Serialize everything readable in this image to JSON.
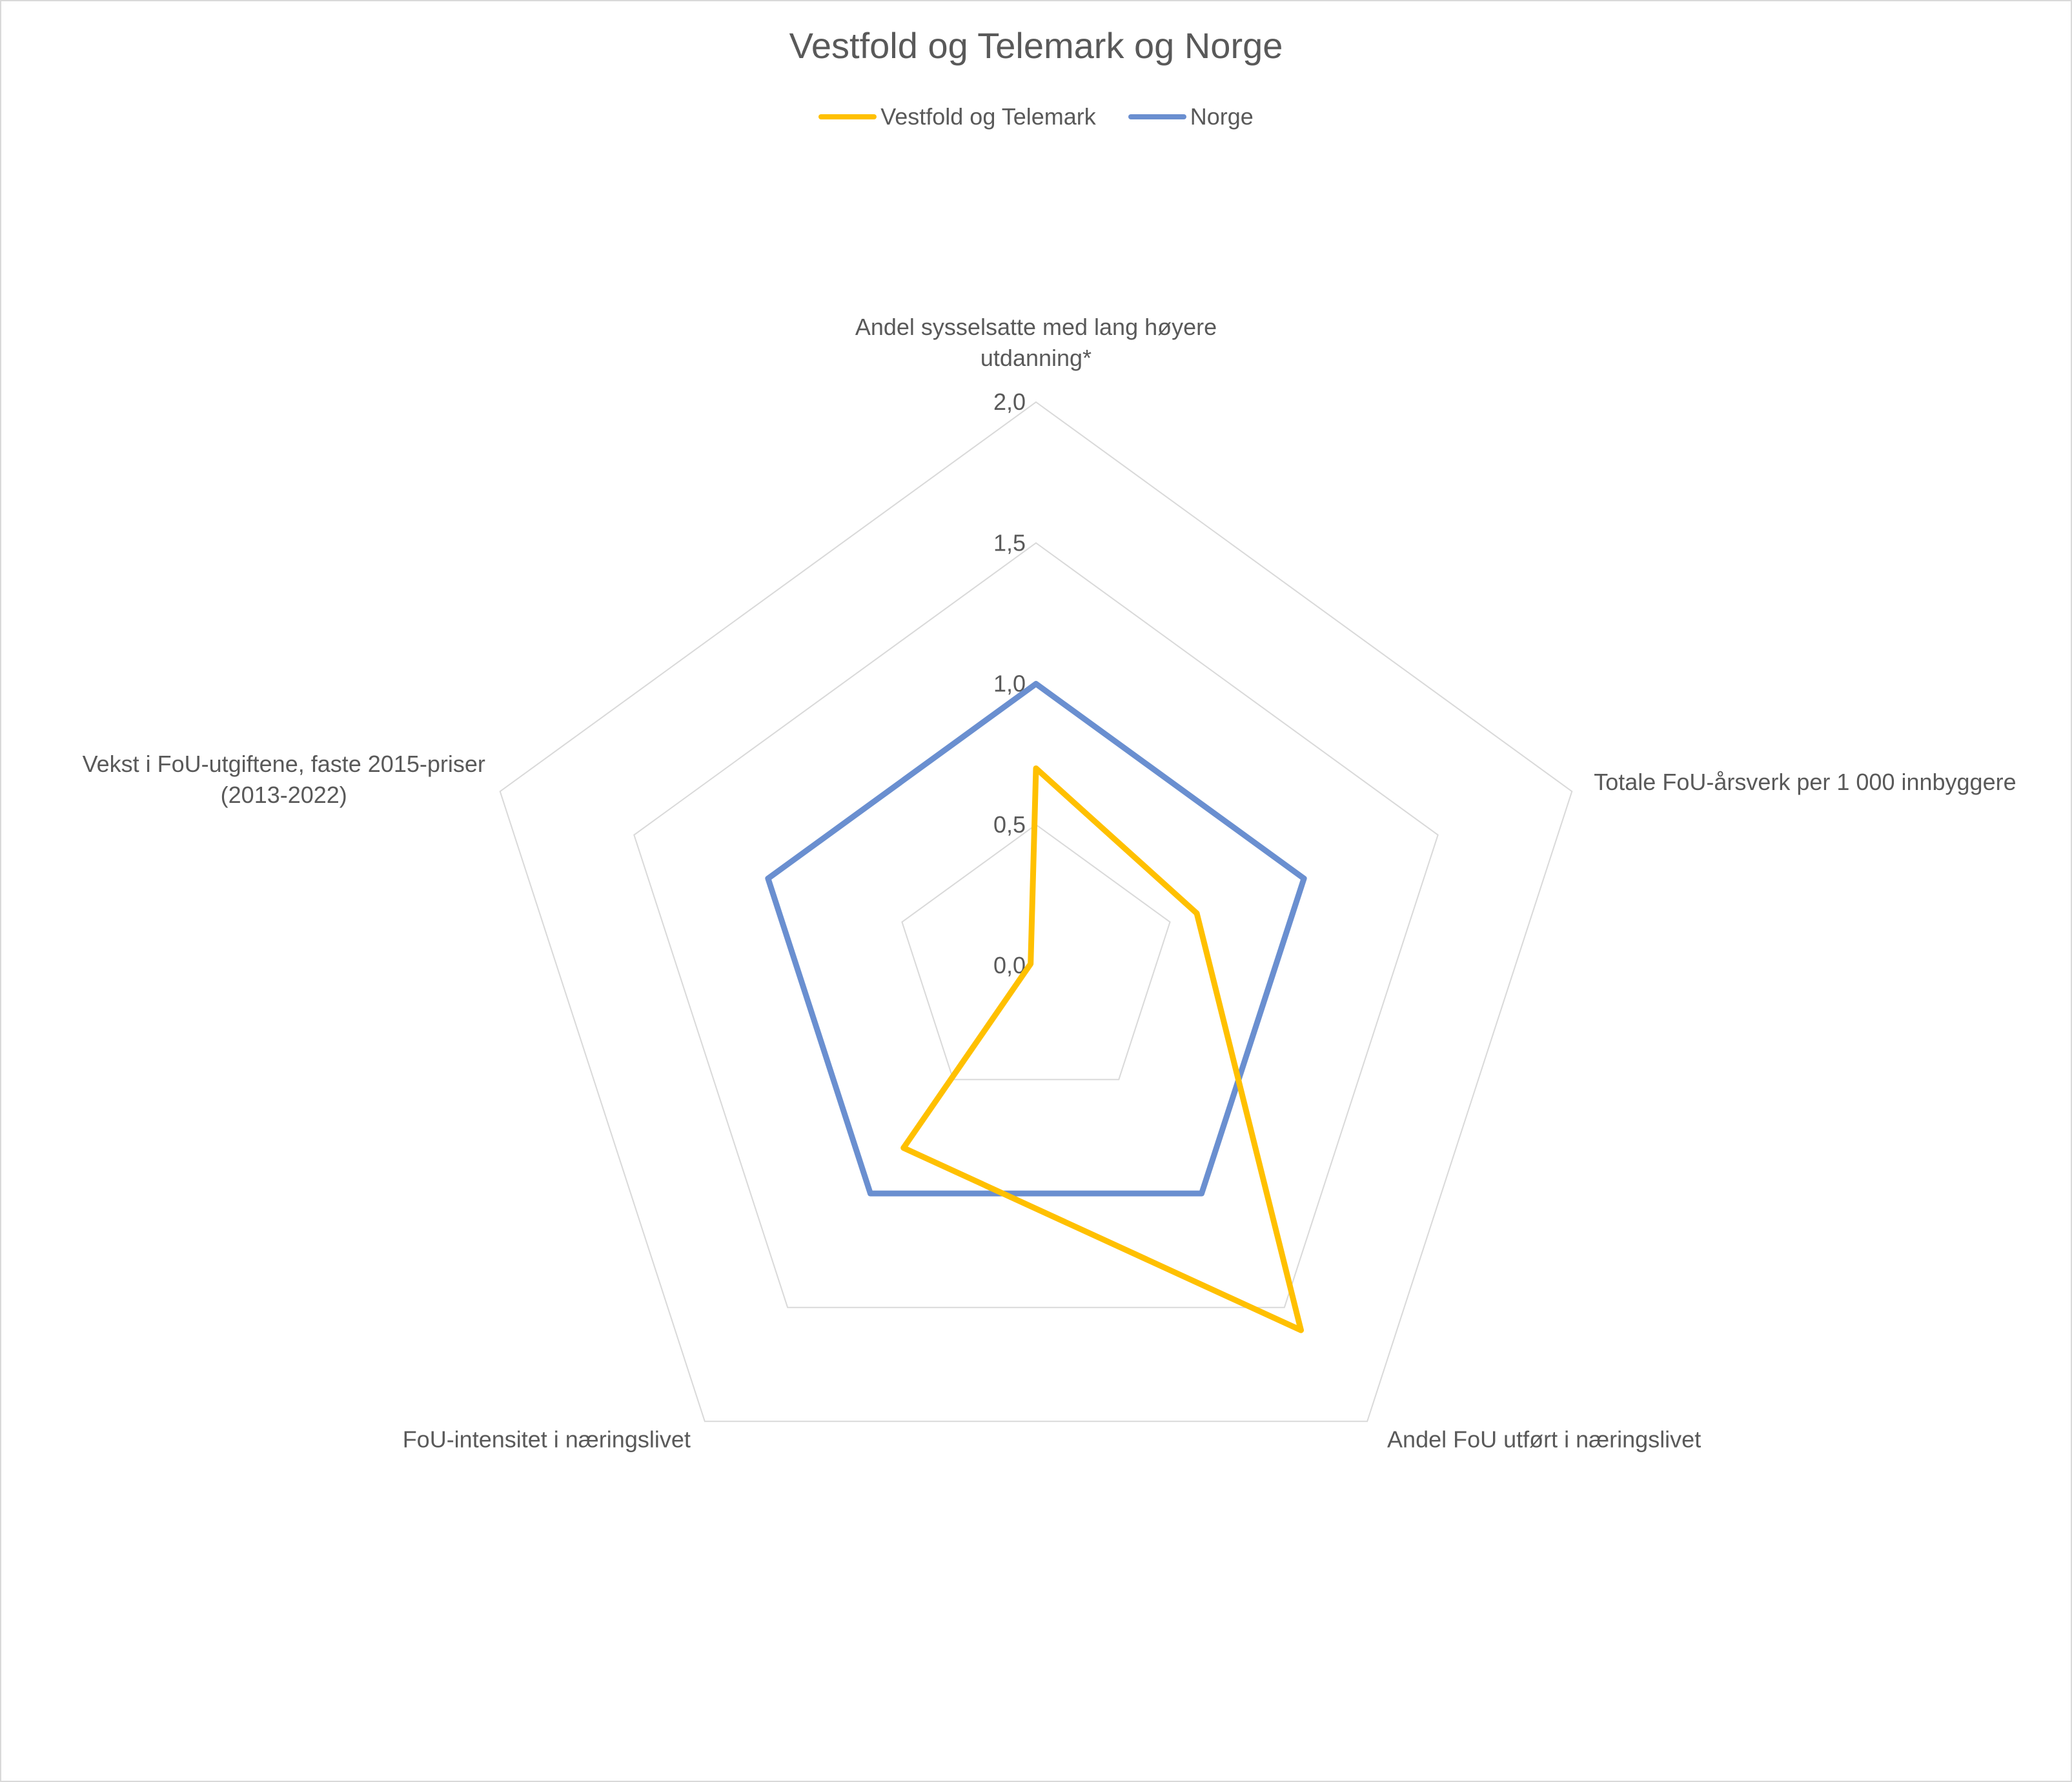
{
  "chart_data": {
    "type": "radar",
    "title": "Vestfold og Telemark og Norge",
    "categories": [
      [
        "Andel sysselsatte med lang høyere",
        "utdanning*"
      ],
      [
        "Totale FoU-årsverk per 1 000 innbyggere"
      ],
      [
        "Andel FoU utført i næringslivet"
      ],
      [
        "FoU-intensitet i næringslivet"
      ],
      [
        "Vekst i FoU-utgiftene, faste 2015-priser",
        "(2013-2022)"
      ]
    ],
    "rlim": [
      0,
      2
    ],
    "ticks": [
      0,
      0.5,
      1,
      1.5,
      2
    ],
    "tick_labels": [
      "0,0",
      "0,5",
      "1,0",
      "1,5",
      "2,0"
    ],
    "grid": true,
    "legend_position": "top",
    "series": [
      {
        "name": "Vestfold og Telemark",
        "color": "#FFC000",
        "values": [
          0.7,
          0.6,
          1.6,
          0.8,
          0.02
        ]
      },
      {
        "name": "Norge",
        "color": "#6A8FD0",
        "values": [
          1.0,
          1.0,
          1.0,
          1.0,
          1.0
        ]
      }
    ]
  }
}
